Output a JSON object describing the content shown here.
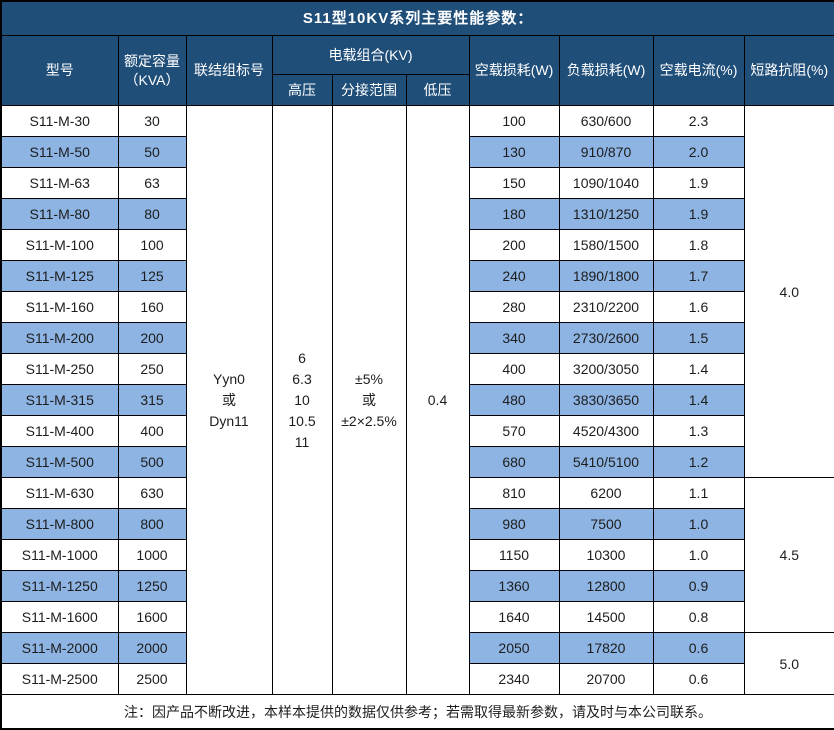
{
  "title": "S11型10KV系列主要性能参数：",
  "header": {
    "model": "型号",
    "capacity_line1": "额定容量",
    "capacity_line2": "（KVA）",
    "connection": "联结组标号",
    "voltage_group": "电载组合(KV)",
    "hv": "高压",
    "tap_range": "分接范围",
    "lv": "低压",
    "no_load_loss": "空载损耗(W)",
    "load_loss": "负载损耗(W)",
    "no_load_current": "空载电流(%)",
    "impedance": "短路抗阻(%)"
  },
  "merged": {
    "connection_lines": [
      "Yyn0",
      "或",
      "Dyn11"
    ],
    "hv_lines": [
      "6",
      "6.3",
      "10",
      "10.5",
      "11"
    ],
    "tap_lines": [
      "±5%",
      "或",
      "±2×2.5%"
    ],
    "lv": "0.4"
  },
  "rows": [
    {
      "model": "S11-M-30",
      "kva": "30",
      "no_load_loss": "100",
      "load_loss": "630/600",
      "no_load_current": "2.3",
      "striped": false
    },
    {
      "model": "S11-M-50",
      "kva": "50",
      "no_load_loss": "130",
      "load_loss": "910/870",
      "no_load_current": "2.0",
      "striped": true
    },
    {
      "model": "S11-M-63",
      "kva": "63",
      "no_load_loss": "150",
      "load_loss": "1090/1040",
      "no_load_current": "1.9",
      "striped": false
    },
    {
      "model": "S11-M-80",
      "kva": "80",
      "no_load_loss": "180",
      "load_loss": "1310/1250",
      "no_load_current": "1.9",
      "striped": true
    },
    {
      "model": "S11-M-100",
      "kva": "100",
      "no_load_loss": "200",
      "load_loss": "1580/1500",
      "no_load_current": "1.8",
      "striped": false
    },
    {
      "model": "S11-M-125",
      "kva": "125",
      "no_load_loss": "240",
      "load_loss": "1890/1800",
      "no_load_current": "1.7",
      "striped": true
    },
    {
      "model": "S11-M-160",
      "kva": "160",
      "no_load_loss": "280",
      "load_loss": "2310/2200",
      "no_load_current": "1.6",
      "striped": false
    },
    {
      "model": "S11-M-200",
      "kva": "200",
      "no_load_loss": "340",
      "load_loss": "2730/2600",
      "no_load_current": "1.5",
      "striped": true
    },
    {
      "model": "S11-M-250",
      "kva": "250",
      "no_load_loss": "400",
      "load_loss": "3200/3050",
      "no_load_current": "1.4",
      "striped": false
    },
    {
      "model": "S11-M-315",
      "kva": "315",
      "no_load_loss": "480",
      "load_loss": "3830/3650",
      "no_load_current": "1.4",
      "striped": true
    },
    {
      "model": "S11-M-400",
      "kva": "400",
      "no_load_loss": "570",
      "load_loss": "4520/4300",
      "no_load_current": "1.3",
      "striped": false
    },
    {
      "model": "S11-M-500",
      "kva": "500",
      "no_load_loss": "680",
      "load_loss": "5410/5100",
      "no_load_current": "1.2",
      "striped": true
    },
    {
      "model": "S11-M-630",
      "kva": "630",
      "no_load_loss": "810",
      "load_loss": "6200",
      "no_load_current": "1.1",
      "striped": false
    },
    {
      "model": "S11-M-800",
      "kva": "800",
      "no_load_loss": "980",
      "load_loss": "7500",
      "no_load_current": "1.0",
      "striped": true
    },
    {
      "model": "S11-M-1000",
      "kva": "1000",
      "no_load_loss": "1150",
      "load_loss": "10300",
      "no_load_current": "1.0",
      "striped": false
    },
    {
      "model": "S11-M-1250",
      "kva": "1250",
      "no_load_loss": "1360",
      "load_loss": "12800",
      "no_load_current": "0.9",
      "striped": true
    },
    {
      "model": "S11-M-1600",
      "kva": "1600",
      "no_load_loss": "1640",
      "load_loss": "14500",
      "no_load_current": "0.8",
      "striped": false
    },
    {
      "model": "S11-M-2000",
      "kva": "2000",
      "no_load_loss": "2050",
      "load_loss": "17820",
      "no_load_current": "0.6",
      "striped": true
    },
    {
      "model": "S11-M-2500",
      "kva": "2500",
      "no_load_loss": "2340",
      "load_loss": "20700",
      "no_load_current": "0.6",
      "striped": false
    }
  ],
  "impedance_groups": [
    {
      "value": "4.0",
      "start": 0,
      "span": 12
    },
    {
      "value": "4.5",
      "start": 12,
      "span": 5
    },
    {
      "value": "5.0",
      "start": 17,
      "span": 2
    }
  ],
  "footnote": "注：因产品不断改进，本样本提供的数据仅供参考；若需取得最新参数，请及时与本公司联系。",
  "colors": {
    "header_bg": "#1f4e79",
    "stripe": "#8db4e2",
    "border": "#000000",
    "text": "#1d1d1d",
    "header_text": "#ffffff"
  }
}
